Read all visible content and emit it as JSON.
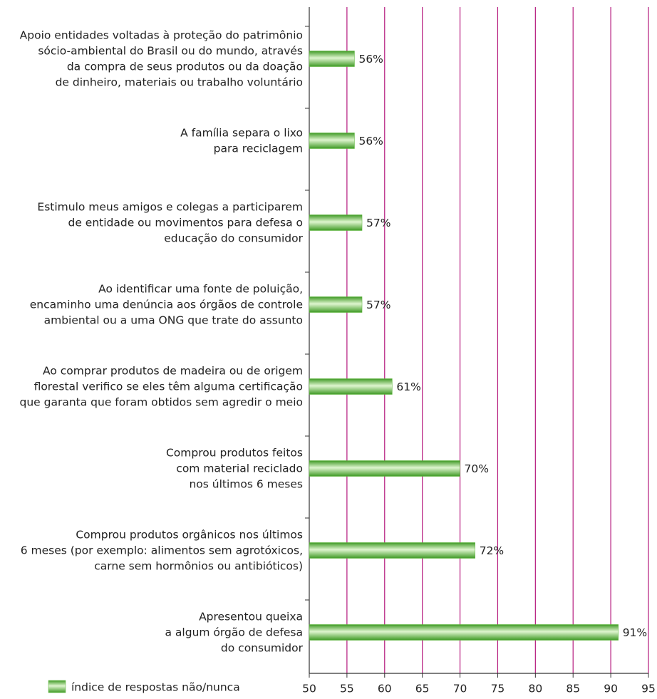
{
  "chart_data": {
    "type": "barh",
    "categories": [
      [
        "Apoio entidades voltadas à proteção do patrimônio",
        "sócio-ambiental do Brasil ou do mundo, através",
        "da compra de seus produtos ou da doação",
        "de dinheiro, materiais ou trabalho voluntário"
      ],
      [
        "A família separa o lixo",
        "para reciclagem"
      ],
      [
        "Estimulo meus amigos e colegas a participarem",
        "de entidade ou movimentos para defesa o",
        "educação do consumidor"
      ],
      [
        "Ao identificar uma fonte de poluição,",
        "encaminho uma denúncia aos órgãos de controle",
        "ambiental ou a uma ONG que trate do assunto"
      ],
      [
        "Ao comprar produtos de madeira ou de origem",
        "florestal verifico se eles têm alguma certificação",
        "que garanta que foram obtidos sem agredir o meio"
      ],
      [
        "Comprou produtos feitos",
        "com material reciclado",
        "nos últimos 6 meses"
      ],
      [
        "Comprou produtos orgânicos nos últimos",
        "6 meses (por exemplo: alimentos sem agrotóxicos,",
        "carne sem hormônios ou antibióticos)"
      ],
      [
        "Apresentou queixa",
        "a algum órgão de defesa",
        "do consumidor"
      ]
    ],
    "series": [
      {
        "name": "índice de respostas não/nunca",
        "color": "#5cb83a",
        "values": [
          56,
          56,
          57,
          57,
          61,
          70,
          72,
          91
        ],
        "value_labels": [
          "56%",
          "56%",
          "57%",
          "57%",
          "61%",
          "70%",
          "72%",
          "91%"
        ]
      }
    ],
    "xlim": [
      50,
      95
    ],
    "xticks": [
      50,
      55,
      60,
      65,
      70,
      75,
      80,
      85,
      90,
      95
    ],
    "grid": true,
    "grid_color": "#b5197d",
    "legend": "bottom-left"
  }
}
